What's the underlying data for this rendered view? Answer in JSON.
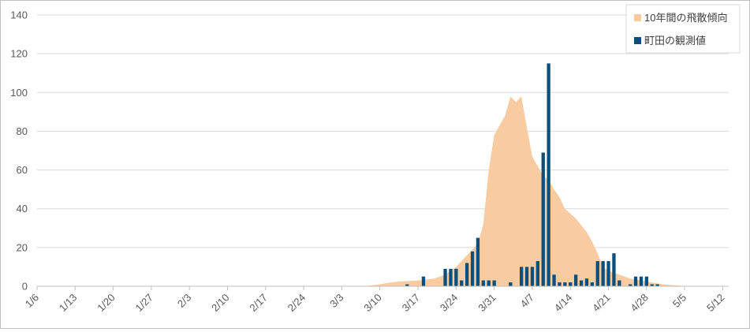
{
  "chart_data": {
    "type": "bar",
    "title": "",
    "xlabel": "",
    "ylabel": "",
    "ylim": [
      0,
      140
    ],
    "yticks": [
      0,
      20,
      40,
      60,
      80,
      100,
      120,
      140
    ],
    "x_start": "1/6",
    "x_ticks": [
      "1/6",
      "1/13",
      "1/20",
      "1/27",
      "2/3",
      "2/10",
      "2/17",
      "2/24",
      "3/3",
      "3/10",
      "3/17",
      "3/24",
      "3/31",
      "4/7",
      "4/14",
      "4/21",
      "4/28",
      "5/5",
      "5/12"
    ],
    "grid": true,
    "legend_position": "top-right",
    "series": [
      {
        "name": "10年間の飛散傾向",
        "type": "area",
        "color": "#f8cba0",
        "points": [
          [
            "3/7",
            0
          ],
          [
            "3/10",
            1
          ],
          [
            "3/12",
            2
          ],
          [
            "3/14",
            2.5
          ],
          [
            "3/17",
            3
          ],
          [
            "3/20",
            4
          ],
          [
            "3/22",
            6
          ],
          [
            "3/24",
            10
          ],
          [
            "3/26",
            16
          ],
          [
            "3/28",
            22
          ],
          [
            "3/29",
            32
          ],
          [
            "3/30",
            60
          ],
          [
            "3/31",
            78
          ],
          [
            "4/2",
            88
          ],
          [
            "4/3",
            98
          ],
          [
            "4/4",
            95
          ],
          [
            "4/5",
            98
          ],
          [
            "4/6",
            82
          ],
          [
            "4/7",
            67
          ],
          [
            "4/8",
            62
          ],
          [
            "4/9",
            57
          ],
          [
            "4/10",
            55
          ],
          [
            "4/11",
            50
          ],
          [
            "4/12",
            46
          ],
          [
            "4/13",
            40
          ],
          [
            "4/15",
            35
          ],
          [
            "4/17",
            28
          ],
          [
            "4/18",
            23
          ],
          [
            "4/19",
            17
          ],
          [
            "4/20",
            10
          ],
          [
            "4/21",
            8
          ],
          [
            "4/23",
            6
          ],
          [
            "4/25",
            4
          ],
          [
            "4/27",
            3
          ],
          [
            "4/29",
            2
          ],
          [
            "5/1",
            1
          ],
          [
            "5/3",
            0.5
          ],
          [
            "5/6",
            0
          ]
        ]
      },
      {
        "name": "町田の観測値",
        "type": "bar",
        "color": "#0b4f7c",
        "points": [
          [
            "3/15",
            1
          ],
          [
            "3/18",
            5
          ],
          [
            "3/22",
            9
          ],
          [
            "3/23",
            9
          ],
          [
            "3/24",
            9
          ],
          [
            "3/25",
            3
          ],
          [
            "3/26",
            12
          ],
          [
            "3/27",
            18
          ],
          [
            "3/28",
            25
          ],
          [
            "3/29",
            3
          ],
          [
            "3/30",
            3
          ],
          [
            "3/31",
            3
          ],
          [
            "4/3",
            2
          ],
          [
            "4/5",
            10
          ],
          [
            "4/6",
            10
          ],
          [
            "4/7",
            10
          ],
          [
            "4/8",
            13
          ],
          [
            "4/9",
            69
          ],
          [
            "4/10",
            115
          ],
          [
            "4/11",
            6
          ],
          [
            "4/12",
            2
          ],
          [
            "4/13",
            2
          ],
          [
            "4/14",
            2
          ],
          [
            "4/15",
            6
          ],
          [
            "4/16",
            3
          ],
          [
            "4/17",
            4
          ],
          [
            "4/18",
            2
          ],
          [
            "4/19",
            13
          ],
          [
            "4/20",
            13
          ],
          [
            "4/21",
            13
          ],
          [
            "4/22",
            17
          ],
          [
            "4/23",
            3
          ],
          [
            "4/25",
            1
          ],
          [
            "4/26",
            5
          ],
          [
            "4/27",
            5
          ],
          [
            "4/28",
            5
          ],
          [
            "4/29",
            1
          ],
          [
            "4/30",
            1
          ]
        ]
      }
    ]
  }
}
